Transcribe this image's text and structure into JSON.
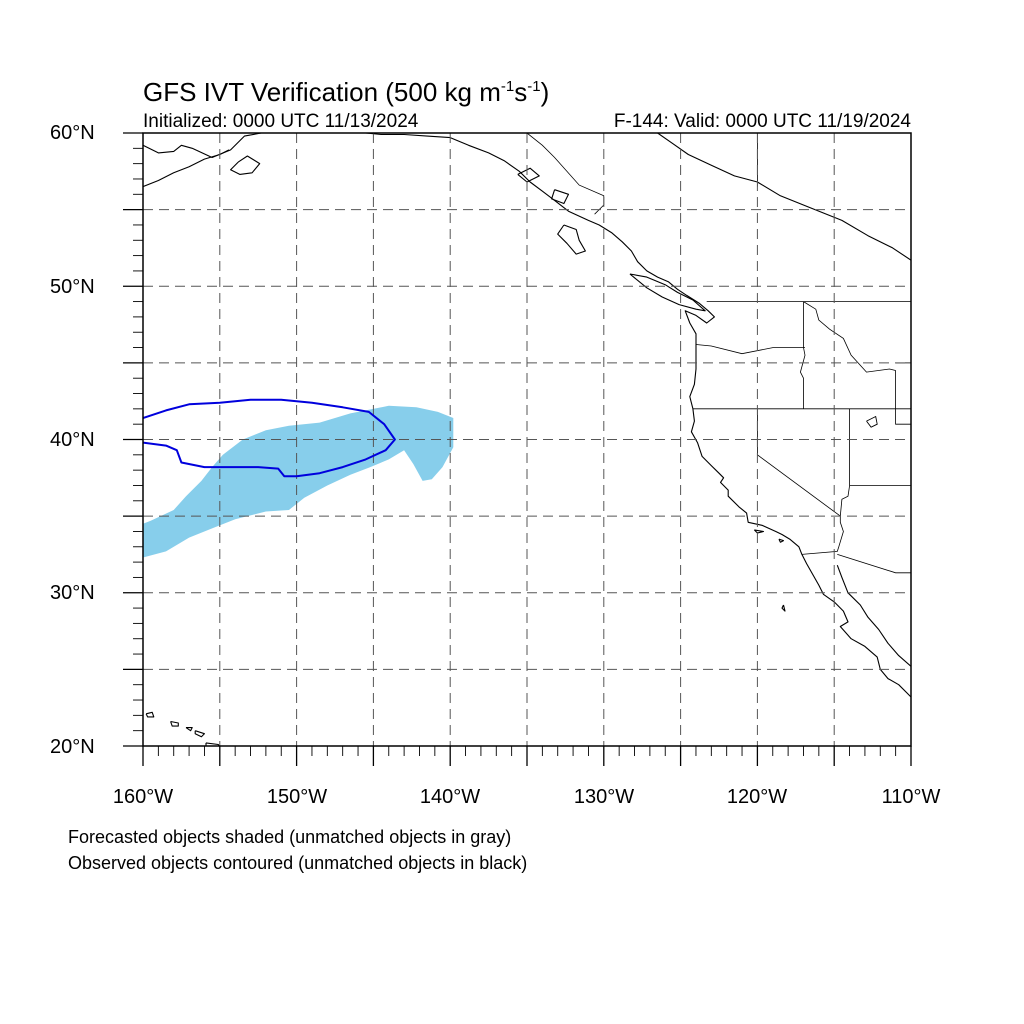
{
  "title": {
    "main": "GFS IVT Verification (500 kg m",
    "sup1": "-1",
    "mid": "s",
    "sup2": "-1",
    "end": ")"
  },
  "subtitle_left": "Initialized: 0000 UTC 11/13/2024",
  "subtitle_right": "F-144: Valid: 0000 UTC 11/19/2024",
  "lat_labels": [
    "60°N",
    "50°N",
    "40°N",
    "30°N",
    "20°N"
  ],
  "lon_labels": [
    "160°W",
    "150°W",
    "140°W",
    "130°W",
    "120°W",
    "110°W"
  ],
  "notes": [
    "Forecasted objects shaded (unmatched objects in gray)",
    "Observed objects contoured (unmatched objects in black)"
  ],
  "colors": {
    "forecast_fill": "#87ceeb",
    "observed_contour": "#0000dd",
    "coastline": "#000000",
    "gridline": "#555555"
  },
  "map_extent": {
    "lon_min": -160,
    "lon_max": -110,
    "lat_min": 20,
    "lat_max": 60
  },
  "gridlines": {
    "lons": [
      -160,
      -155,
      -150,
      -145,
      -140,
      -135,
      -130,
      -125,
      -120,
      -115,
      -110
    ],
    "lats": [
      20,
      25,
      30,
      35,
      40,
      45,
      50,
      55,
      60
    ]
  },
  "forecast_object": [
    [
      -160,
      32.3
    ],
    [
      -158.5,
      32.7
    ],
    [
      -157,
      33.6
    ],
    [
      -155.5,
      34.2
    ],
    [
      -154,
      34.8
    ],
    [
      -152,
      35.3
    ],
    [
      -150.5,
      35.4
    ],
    [
      -149.5,
      36.2
    ],
    [
      -148,
      37.0
    ],
    [
      -146.5,
      37.7
    ],
    [
      -145.2,
      38.2
    ],
    [
      -144,
      38.7
    ],
    [
      -143,
      39.3
    ],
    [
      -142.4,
      38.4
    ],
    [
      -141.8,
      37.3
    ],
    [
      -141.2,
      37.4
    ],
    [
      -140.5,
      38.2
    ],
    [
      -139.8,
      39.5
    ],
    [
      -139.8,
      41.4
    ],
    [
      -140.8,
      41.8
    ],
    [
      -142.2,
      42.1
    ],
    [
      -144,
      42.2
    ],
    [
      -145.5,
      41.9
    ],
    [
      -146.5,
      41.7
    ],
    [
      -148.5,
      41.1
    ],
    [
      -150.5,
      40.9
    ],
    [
      -152,
      40.6
    ],
    [
      -153.5,
      40.0
    ],
    [
      -154.8,
      39.0
    ],
    [
      -155.5,
      38.2
    ],
    [
      -156.2,
      37.3
    ],
    [
      -157.2,
      36.3
    ],
    [
      -158,
      35.4
    ],
    [
      -159.5,
      34.7
    ],
    [
      -160,
      34.5
    ]
  ],
  "observed_object": [
    [
      -160,
      41.4
    ],
    [
      -158.5,
      41.9
    ],
    [
      -157,
      42.3
    ],
    [
      -155,
      42.4
    ],
    [
      -153,
      42.6
    ],
    [
      -151,
      42.6
    ],
    [
      -149,
      42.4
    ],
    [
      -147,
      42.1
    ],
    [
      -145.3,
      41.8
    ],
    [
      -144.3,
      41.0
    ],
    [
      -143.6,
      40.0
    ],
    [
      -144.2,
      39.3
    ],
    [
      -145.5,
      38.7
    ],
    [
      -147,
      38.2
    ],
    [
      -148.5,
      37.8
    ],
    [
      -150,
      37.6
    ],
    [
      -150.8,
      37.6
    ],
    [
      -151.2,
      38.1
    ],
    [
      -152.5,
      38.2
    ],
    [
      -154.5,
      38.2
    ],
    [
      -156,
      38.2
    ],
    [
      -157.5,
      38.5
    ],
    [
      -157.8,
      39.3
    ],
    [
      -158.5,
      39.6
    ],
    [
      -160,
      39.8
    ]
  ],
  "coastlines": [
    [
      [
        -126.5,
        60
      ],
      [
        -125.5,
        59.3
      ],
      [
        -124.5,
        58.6
      ],
      [
        -123,
        57.9
      ],
      [
        -121.5,
        57.2
      ],
      [
        -120,
        56.8
      ],
      [
        -118.5,
        55.9
      ],
      [
        -116.5,
        55.1
      ],
      [
        -114.5,
        54.3
      ],
      [
        -112.8,
        53.3
      ],
      [
        -111.2,
        52.5
      ],
      [
        -110,
        51.7
      ]
    ],
    [
      [
        -160,
        59.2
      ],
      [
        -159,
        58.7
      ],
      [
        -158,
        58.8
      ],
      [
        -157.5,
        59.2
      ],
      [
        -156.8,
        59.0
      ],
      [
        -155.5,
        58.4
      ],
      [
        -154.3,
        58.9
      ],
      [
        -153.4,
        59.8
      ],
      [
        -152.3,
        60
      ]
    ],
    [
      [
        -160,
        56.5
      ],
      [
        -159,
        56.9
      ],
      [
        -158,
        57.4
      ],
      [
        -157,
        57.8
      ],
      [
        -156,
        58.3
      ],
      [
        -155,
        58.6
      ],
      [
        -154.4,
        58.9
      ]
    ],
    [
      [
        -153.8,
        58.1
      ],
      [
        -153.2,
        58.5
      ],
      [
        -152.4,
        58.0
      ],
      [
        -152.9,
        57.4
      ],
      [
        -153.7,
        57.3
      ],
      [
        -154.3,
        57.6
      ],
      [
        -153.8,
        58.1
      ]
    ],
    [
      [
        -145.5,
        60
      ],
      [
        -144.5,
        59.9
      ],
      [
        -143,
        59.9
      ],
      [
        -141.5,
        59.8
      ],
      [
        -140,
        59.7
      ],
      [
        -138.8,
        59.2
      ],
      [
        -137.5,
        58.7
      ],
      [
        -136.5,
        58.2
      ],
      [
        -135.5,
        57.5
      ],
      [
        -134.8,
        56.8
      ],
      [
        -134,
        56.2
      ],
      [
        -133.2,
        55.6
      ],
      [
        -132.3,
        54.9
      ],
      [
        -131.0,
        54.3
      ],
      [
        -130.3,
        54.0
      ],
      [
        -129.5,
        53.5
      ],
      [
        -128.8,
        52.9
      ],
      [
        -128.2,
        52.3
      ],
      [
        -127.8,
        51.6
      ],
      [
        -127.2,
        51.0
      ],
      [
        -126.5,
        50.6
      ],
      [
        -125.8,
        50.3
      ],
      [
        -125.2,
        49.8
      ],
      [
        -124.6,
        49.4
      ],
      [
        -123.8,
        48.9
      ],
      [
        -123.2,
        48.4
      ],
      [
        -122.8,
        48.0
      ],
      [
        -123.3,
        47.6
      ],
      [
        -124.0,
        48.1
      ],
      [
        -124.7,
        48.4
      ],
      [
        -124.4,
        47.6
      ],
      [
        -124.0,
        46.9
      ],
      [
        -124.0,
        46.2
      ],
      [
        -124.0,
        45.5
      ],
      [
        -124.0,
        44.6
      ],
      [
        -124.1,
        43.6
      ],
      [
        -124.4,
        42.8
      ],
      [
        -124.2,
        42.0
      ],
      [
        -124.1,
        41.2
      ],
      [
        -124.3,
        40.5
      ],
      [
        -123.9,
        39.8
      ],
      [
        -123.6,
        38.9
      ],
      [
        -123.0,
        38.3
      ],
      [
        -122.5,
        37.8
      ],
      [
        -122.2,
        37.5
      ],
      [
        -122.4,
        37.2
      ],
      [
        -121.9,
        36.7
      ],
      [
        -121.9,
        36.3
      ],
      [
        -121.2,
        35.6
      ],
      [
        -120.7,
        35.2
      ],
      [
        -120.6,
        34.6
      ],
      [
        -119.7,
        34.4
      ],
      [
        -118.8,
        34.0
      ],
      [
        -118.4,
        33.8
      ],
      [
        -117.9,
        33.5
      ],
      [
        -117.3,
        33.0
      ],
      [
        -117.1,
        32.5
      ],
      [
        -116.8,
        31.9
      ],
      [
        -116.4,
        31.2
      ],
      [
        -116.0,
        30.5
      ],
      [
        -115.7,
        29.9
      ],
      [
        -115.0,
        29.4
      ],
      [
        -114.4,
        28.8
      ],
      [
        -114.1,
        28.1
      ],
      [
        -114.6,
        27.8
      ],
      [
        -113.9,
        27.0
      ],
      [
        -113.0,
        26.5
      ],
      [
        -112.2,
        25.8
      ],
      [
        -112.0,
        25.0
      ],
      [
        -111.5,
        24.4
      ],
      [
        -110.8,
        24.0
      ],
      [
        -110.3,
        23.5
      ],
      [
        -110,
        23.2
      ]
    ],
    [
      [
        -114.8,
        31.8
      ],
      [
        -114.5,
        31.0
      ],
      [
        -114.1,
        30.0
      ],
      [
        -113.3,
        29.2
      ],
      [
        -112.8,
        28.4
      ],
      [
        -112.1,
        27.6
      ],
      [
        -111.5,
        26.7
      ],
      [
        -110.8,
        25.9
      ],
      [
        -110,
        25.2
      ]
    ],
    [
      [
        -135.6,
        57.3
      ],
      [
        -134.8,
        57.7
      ],
      [
        -134.2,
        57.2
      ],
      [
        -135.0,
        56.8
      ],
      [
        -135.6,
        57.3
      ]
    ],
    [
      [
        -133.2,
        56.3
      ],
      [
        -132.3,
        56.0
      ],
      [
        -132.6,
        55.4
      ],
      [
        -133.4,
        55.7
      ],
      [
        -133.2,
        56.3
      ]
    ],
    [
      [
        -132.6,
        54.0
      ],
      [
        -131.8,
        53.7
      ],
      [
        -131.6,
        53.0
      ],
      [
        -131.2,
        52.3
      ],
      [
        -131.8,
        52.1
      ],
      [
        -132.4,
        52.8
      ],
      [
        -133.0,
        53.4
      ],
      [
        -132.6,
        54.0
      ]
    ],
    [
      [
        -128.3,
        50.8
      ],
      [
        -127.2,
        50.6
      ],
      [
        -126.0,
        50.1
      ],
      [
        -125.2,
        49.6
      ],
      [
        -124.2,
        49.1
      ],
      [
        -123.4,
        48.4
      ],
      [
        -124.0,
        48.5
      ],
      [
        -125.1,
        48.8
      ],
      [
        -126.2,
        49.3
      ],
      [
        -127.2,
        49.9
      ],
      [
        -128.3,
        50.8
      ]
    ],
    [
      [
        -159.8,
        22.1
      ],
      [
        -159.4,
        22.2
      ],
      [
        -159.3,
        21.9
      ],
      [
        -159.7,
        21.9
      ],
      [
        -159.8,
        22.1
      ]
    ],
    [
      [
        -158.2,
        21.6
      ],
      [
        -157.7,
        21.5
      ],
      [
        -157.7,
        21.3
      ],
      [
        -158.1,
        21.3
      ],
      [
        -158.2,
        21.6
      ]
    ],
    [
      [
        -157.2,
        21.2
      ],
      [
        -156.8,
        21.2
      ],
      [
        -156.9,
        21.0
      ],
      [
        -157.2,
        21.2
      ]
    ],
    [
      [
        -156.6,
        21.0
      ],
      [
        -156.0,
        20.8
      ],
      [
        -156.2,
        20.6
      ],
      [
        -156.6,
        20.8
      ],
      [
        -156.6,
        21.0
      ]
    ],
    [
      [
        -155.9,
        20.2
      ],
      [
        -155.1,
        20.1
      ],
      [
        -154.8,
        19.5
      ],
      [
        -155.6,
        19.1
      ],
      [
        -155.9,
        19.5
      ],
      [
        -155.9,
        20.2
      ]
    ],
    [
      [
        -120.2,
        34.1
      ],
      [
        -119.6,
        34.0
      ],
      [
        -120.0,
        33.9
      ],
      [
        -120.2,
        34.1
      ]
    ],
    [
      [
        -118.6,
        33.5
      ],
      [
        -118.3,
        33.4
      ],
      [
        -118.5,
        33.3
      ],
      [
        -118.6,
        33.5
      ]
    ],
    [
      [
        -118.3,
        29.2
      ],
      [
        -118.2,
        28.8
      ],
      [
        -118.4,
        29.0
      ],
      [
        -118.3,
        29.2
      ]
    ]
  ],
  "borders": [
    [
      [
        -123.3,
        49
      ],
      [
        -110,
        49
      ]
    ],
    [
      [
        -124.0,
        46.2
      ],
      [
        -123.0,
        46.1
      ],
      [
        -121.0,
        45.6
      ],
      [
        -119.0,
        46.0
      ],
      [
        -116.9,
        46.0
      ]
    ],
    [
      [
        -124.2,
        42.0
      ],
      [
        -110,
        42.0
      ]
    ],
    [
      [
        -117.0,
        49.0
      ],
      [
        -117.0,
        46.0
      ],
      [
        -116.9,
        45.5
      ],
      [
        -117.2,
        44.4
      ],
      [
        -117.0,
        44.0
      ],
      [
        -117.0,
        42.0
      ]
    ],
    [
      [
        -120.0,
        42.0
      ],
      [
        -120.0,
        39.0
      ],
      [
        -114.6,
        35.0
      ],
      [
        -114.6,
        34.6
      ],
      [
        -114.4,
        34.0
      ],
      [
        -114.7,
        33.0
      ],
      [
        -114.8,
        32.7
      ],
      [
        -117.1,
        32.5
      ]
    ],
    [
      [
        -114.0,
        42.0
      ],
      [
        -114.0,
        37.0
      ],
      [
        -114.1,
        36.3
      ],
      [
        -114.5,
        36.1
      ],
      [
        -114.6,
        35.0
      ]
    ],
    [
      [
        -114.8,
        32.5
      ],
      [
        -111.0,
        31.3
      ],
      [
        -110,
        31.3
      ]
    ],
    [
      [
        -114.0,
        37.0
      ],
      [
        -110,
        37.0
      ]
    ],
    [
      [
        -111.0,
        45.0
      ],
      [
        -110,
        45.0
      ]
    ],
    [
      [
        -111.0,
        44.5
      ],
      [
        -111.0,
        41.0
      ],
      [
        -110,
        41.0
      ]
    ],
    [
      [
        -117.0,
        49.0
      ],
      [
        -116.2,
        48.5
      ],
      [
        -116.0,
        47.8
      ],
      [
        -115.3,
        47.2
      ],
      [
        -114.4,
        46.6
      ],
      [
        -113.9,
        45.5
      ],
      [
        -112.9,
        44.4
      ],
      [
        -111.4,
        44.6
      ],
      [
        -111.0,
        44.5
      ]
    ],
    [
      [
        -120.0,
        56.5
      ],
      [
        -120.0,
        60
      ]
    ],
    [
      [
        -135.0,
        60
      ],
      [
        -134.0,
        59.2
      ],
      [
        -133.2,
        58.4
      ],
      [
        -131.6,
        56.6
      ],
      [
        -130.0,
        55.9
      ],
      [
        -130.0,
        55.3
      ],
      [
        -130.6,
        54.7
      ]
    ],
    [
      [
        -141.0,
        60
      ],
      [
        -140.0,
        60.3
      ]
    ]
  ],
  "lakes": [
    [
      [
        -112.9,
        41.2
      ],
      [
        -112.3,
        41.5
      ],
      [
        -112.2,
        41.0
      ],
      [
        -112.6,
        40.8
      ],
      [
        -112.9,
        41.2
      ]
    ]
  ]
}
